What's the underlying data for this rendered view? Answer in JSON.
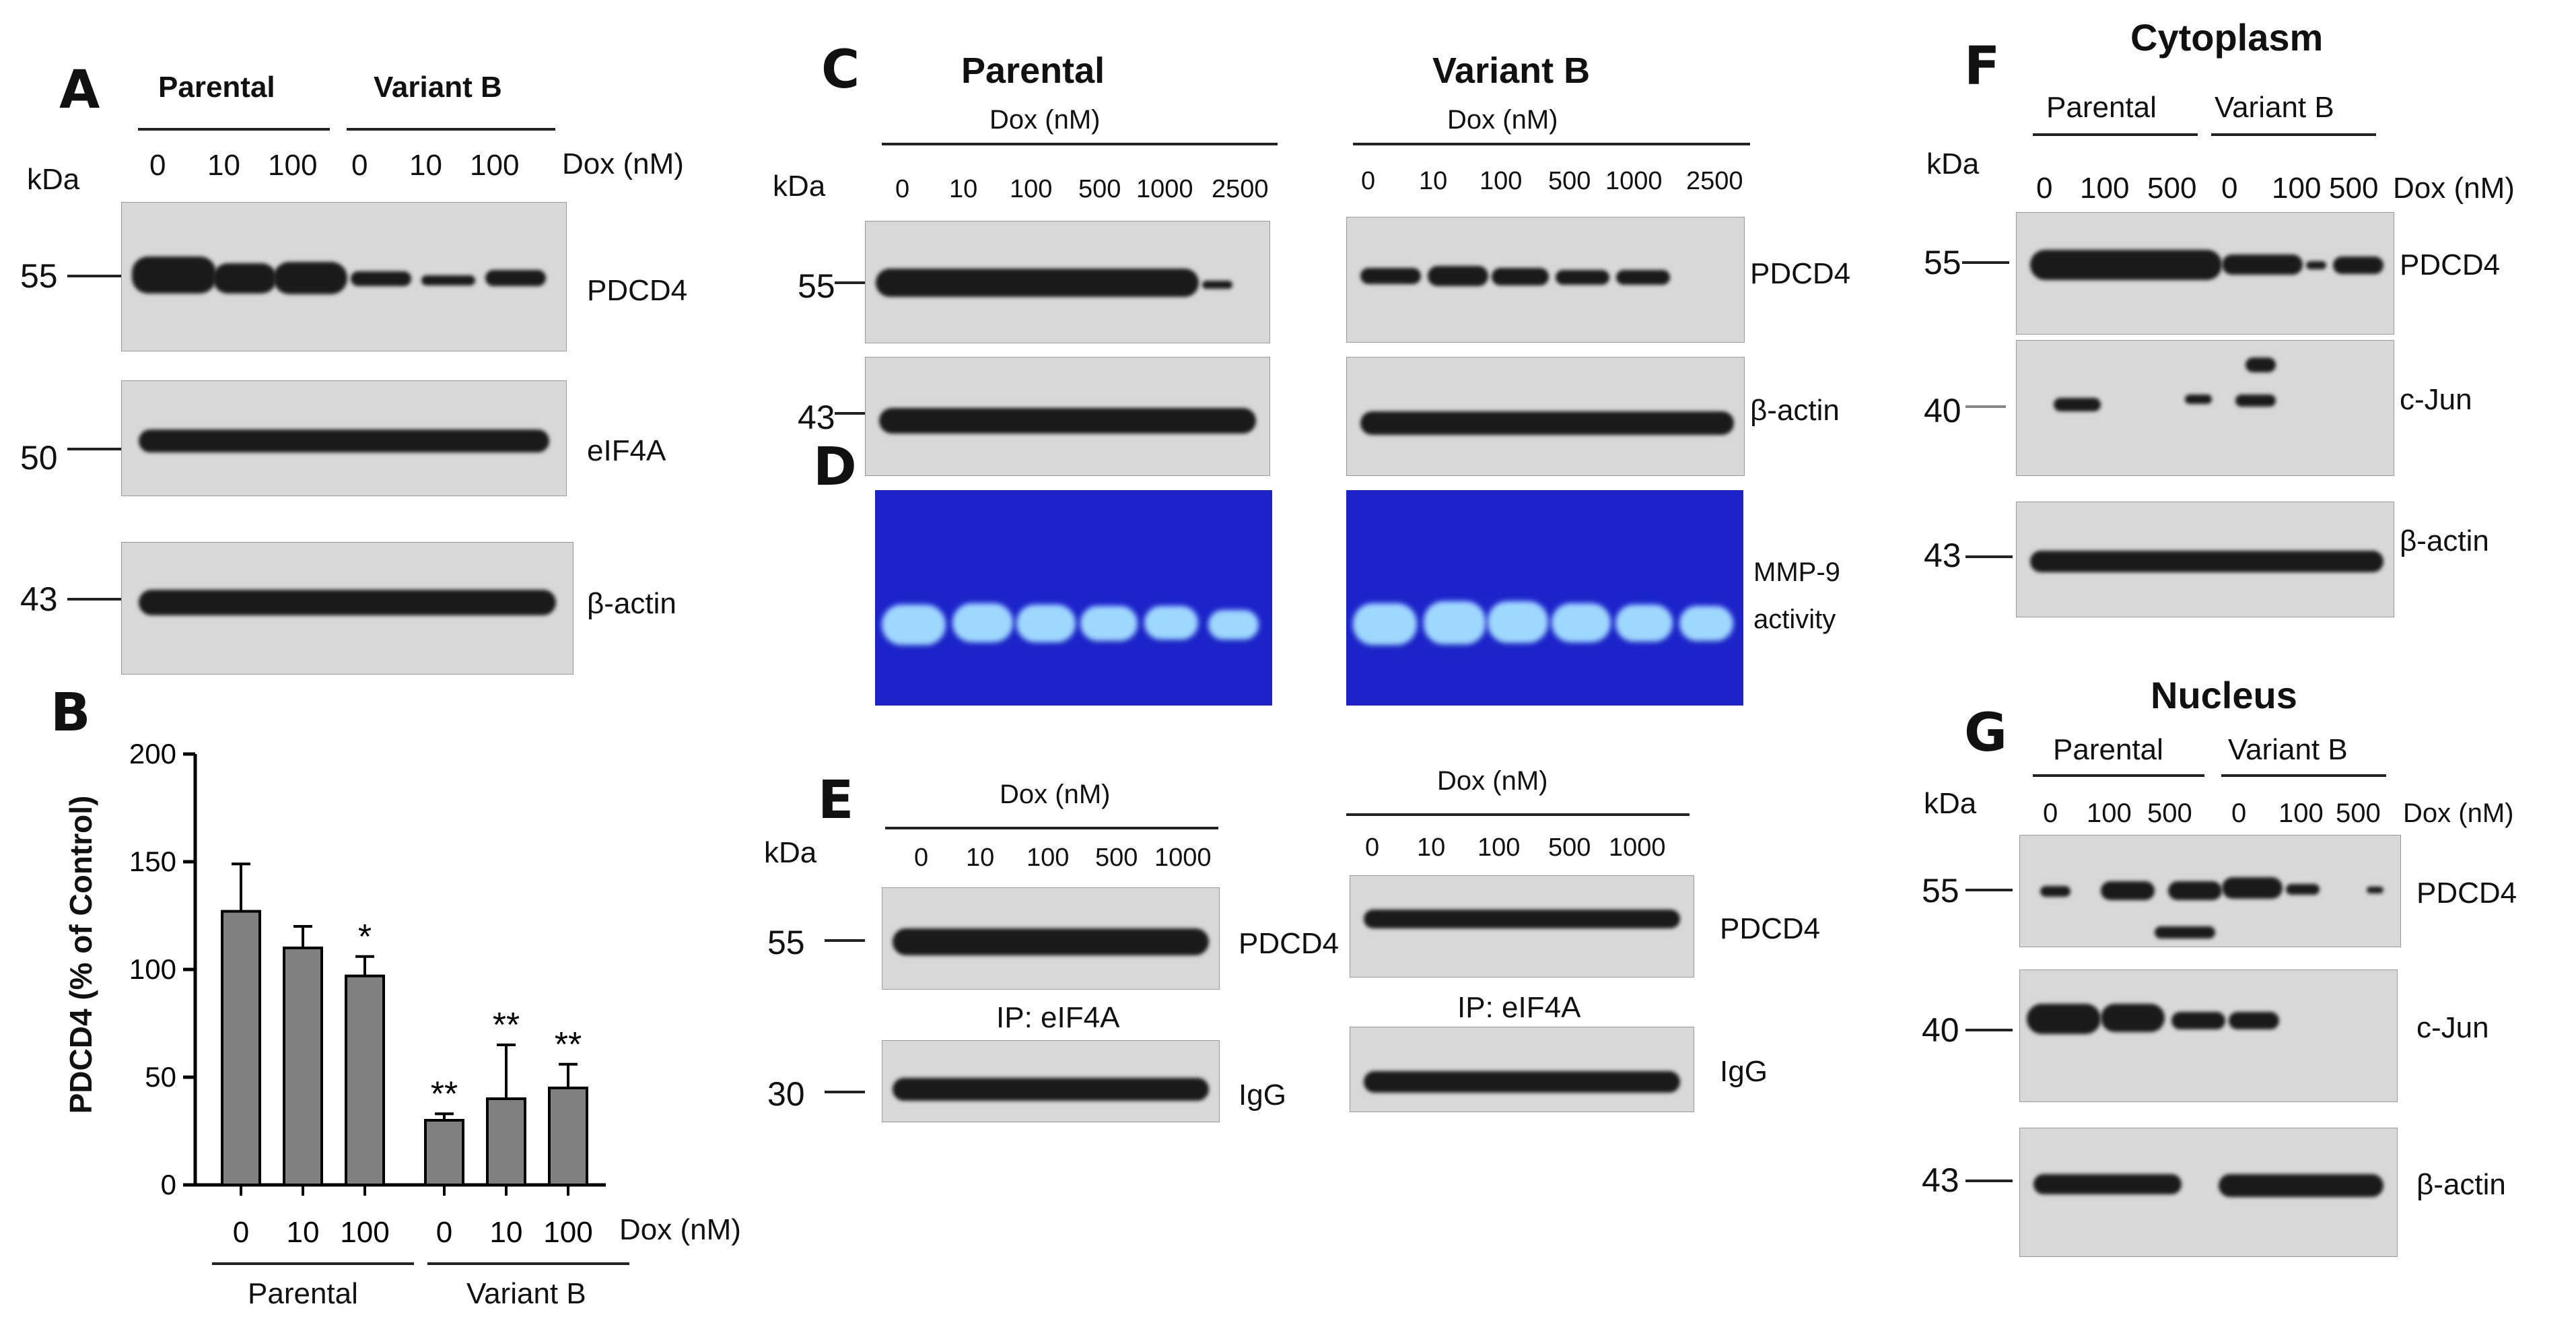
{
  "panel_labels": [
    "A",
    "B",
    "C",
    "D",
    "E",
    "F",
    "G"
  ],
  "panel_A": {
    "group_labels": [
      "Parental",
      "Variant B"
    ],
    "kda_label": "kDa",
    "lanes": [
      "0",
      "10",
      "100",
      "0",
      "10",
      "100"
    ],
    "dox_label": "Dox (nM)",
    "blots": [
      {
        "mw": "55",
        "protein": "PDCD4"
      },
      {
        "mw": "50",
        "protein": "eIF4A"
      },
      {
        "mw": "43",
        "protein": "β-actin"
      }
    ]
  },
  "panel_B": {
    "ylabel": "PDCD4 (% of Control)",
    "yticks": [
      "0",
      "50",
      "100",
      "150",
      "200"
    ],
    "categories": [
      "0",
      "10",
      "100",
      "0",
      "10",
      "100"
    ],
    "dox_label": "Dox (nM)",
    "group_labels": [
      "Parental",
      "Variant B"
    ],
    "significance": [
      "",
      "",
      "*",
      "**",
      "**",
      "**"
    ]
  },
  "panel_C": {
    "titles": [
      "Parental",
      "Variant B"
    ],
    "dox_label": "Dox (nM)",
    "kda_label": "kDa",
    "lanes": [
      "0",
      "10",
      "100",
      "500",
      "1000",
      "2500"
    ],
    "blots": [
      {
        "mw": "55",
        "protein": "PDCD4"
      },
      {
        "mw": "43",
        "protein": "β-actin"
      }
    ]
  },
  "panel_D": {
    "label": "MMP-9\nactivity",
    "label_line1": "MMP-9",
    "label_line2": "activity"
  },
  "panel_E": {
    "dox_label": "Dox (nM)",
    "kda_label": "kDa",
    "lanes": [
      "0",
      "10",
      "100",
      "500",
      "1000"
    ],
    "blots": [
      {
        "mw": "55",
        "protein": "PDCD4"
      },
      {
        "mw": "30",
        "protein": "IgG"
      }
    ],
    "ip_label": "IP: eIF4A"
  },
  "panel_F": {
    "title": "Cytoplasm",
    "group_labels": [
      "Parental",
      "Variant B"
    ],
    "kda_label": "kDa",
    "lanes": [
      "0",
      "100",
      "500",
      "0",
      "100",
      "500"
    ],
    "dox_label": "Dox (nM)",
    "blots": [
      {
        "mw": "55",
        "protein": "PDCD4"
      },
      {
        "mw": "40",
        "protein": "c-Jun"
      },
      {
        "mw": "43",
        "protein": "β-actin"
      }
    ]
  },
  "panel_G": {
    "title": "Nucleus",
    "group_labels": [
      "Parental",
      "Variant B"
    ],
    "kda_label": "kDa",
    "lanes": [
      "0",
      "100",
      "500",
      "0",
      "100",
      "500"
    ],
    "dox_label": "Dox (nM)",
    "blots": [
      {
        "mw": "55",
        "protein": "PDCD4"
      },
      {
        "mw": "40",
        "protein": "c-Jun"
      },
      {
        "mw": "43",
        "protein": "β-actin"
      }
    ]
  },
  "chart_data": {
    "type": "bar",
    "categories": [
      "0",
      "10",
      "100",
      "0",
      "10",
      "100"
    ],
    "groups": [
      "Parental",
      "Parental",
      "Parental",
      "Variant B",
      "Variant B",
      "Variant B"
    ],
    "values": [
      127,
      110,
      97,
      30,
      40,
      45
    ],
    "errors": [
      22,
      10,
      9,
      3,
      25,
      11
    ],
    "significance": [
      "",
      "",
      "*",
      "**",
      "**",
      "**"
    ],
    "xlabel": "Dox (nM)",
    "ylabel": "PDCD4 (% of Control)",
    "ylim": [
      0,
      200
    ],
    "yticks": [
      0,
      50,
      100,
      150,
      200
    ],
    "colors": {
      "bar": "#808080",
      "edge": "#000000"
    }
  },
  "colors": {
    "zymogram_bg": "#1c24c9",
    "zymogram_band": "#9fd8ff",
    "blot_bg": "#d8d8d8",
    "band": "#1a1a1a"
  }
}
